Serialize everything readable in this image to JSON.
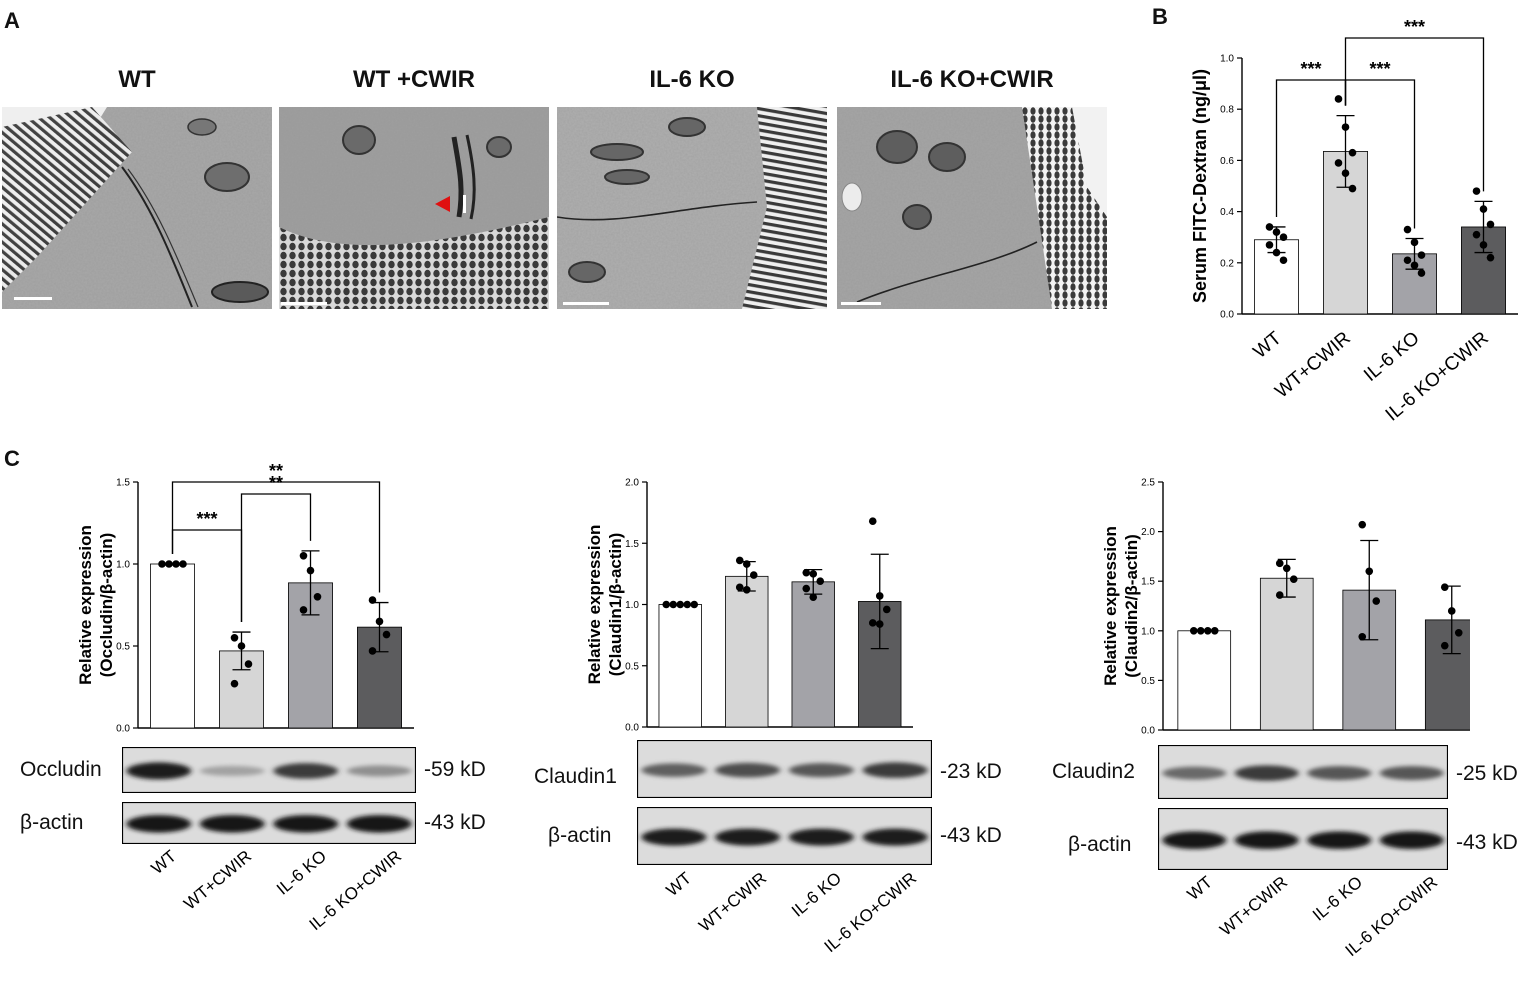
{
  "panel_a": {
    "letter": "A",
    "titles": [
      "WT",
      "WT +CWIR",
      "IL-6 KO",
      "IL-6 KO+CWIR"
    ]
  },
  "panel_b": {
    "letter": "B"
  },
  "panel_c": {
    "letter": "C"
  },
  "colors": {
    "WT": "#ffffff",
    "WT+CWIR": "#d6d6d6",
    "IL-6 KO": "#a3a3a8",
    "IL-6 KO+CWIR": "#5c5c5e",
    "arrowhead": "#e01010"
  },
  "chart_data": [
    {
      "id": "B",
      "type": "bar",
      "ylabel": "Serum FITC-Dextran (ng/μl)",
      "categories": [
        "WT",
        "WT+CWIR",
        "IL-6 KO",
        "IL-6 KO+CWIR"
      ],
      "values": [
        0.29,
        0.635,
        0.235,
        0.34
      ],
      "errors": [
        0.05,
        0.14,
        0.06,
        0.1
      ],
      "points": [
        [
          0.34,
          0.32,
          0.3,
          0.27,
          0.24,
          0.21
        ],
        [
          0.84,
          0.73,
          0.63,
          0.59,
          0.55,
          0.49
        ],
        [
          0.33,
          0.28,
          0.23,
          0.21,
          0.19,
          0.16
        ],
        [
          0.48,
          0.41,
          0.35,
          0.31,
          0.27,
          0.22
        ]
      ],
      "ylim": [
        0,
        1.0
      ],
      "yticks": [
        "0.0",
        "0.2",
        "0.4",
        "0.6",
        "0.8",
        "1.0"
      ],
      "significance": [
        {
          "from": 0,
          "to": 1,
          "label": "***"
        },
        {
          "from": 1,
          "to": 2,
          "label": "***"
        },
        {
          "from": 1,
          "to": 3,
          "label": "***"
        }
      ]
    },
    {
      "id": "C1",
      "type": "bar",
      "ylabel": [
        "Relative expression",
        "(Occludin/β-actin)"
      ],
      "categories": [
        "WT",
        "WT+CWIR",
        "IL-6 KO",
        "IL-6 KO+CWIR"
      ],
      "values": [
        1.0,
        0.47,
        0.885,
        0.615
      ],
      "errors": [
        0.0,
        0.115,
        0.195,
        0.15
      ],
      "points": [
        [
          1.0,
          1.0,
          1.0,
          1.0
        ],
        [
          0.55,
          0.5,
          0.39,
          0.27
        ],
        [
          1.05,
          0.96,
          0.8,
          0.72
        ],
        [
          0.78,
          0.65,
          0.57,
          0.47
        ]
      ],
      "ylim": [
        0,
        1.5
      ],
      "yticks": [
        "0.0",
        "0.5",
        "1.0",
        "1.5"
      ],
      "significance": [
        {
          "from": 0,
          "to": 1,
          "label": "***"
        },
        {
          "from": 1,
          "to": 2,
          "label": "**"
        },
        {
          "from": 0,
          "to": 3,
          "label": "**"
        }
      ],
      "blot_labels": [
        "Occludin",
        "β-actin"
      ],
      "blot_kd": [
        "-59 kD",
        "-43 kD"
      ]
    },
    {
      "id": "C2",
      "type": "bar",
      "ylabel": [
        "Relative expression",
        "(Claudin1/β-actin)"
      ],
      "categories": [
        "WT",
        "WT+CWIR",
        "IL-6 KO",
        "IL-6 KO+CWIR"
      ],
      "values": [
        1.0,
        1.23,
        1.185,
        1.025
      ],
      "errors": [
        0.0,
        0.12,
        0.1,
        0.385
      ],
      "points": [
        [
          1.0,
          1.0,
          1.0,
          1.0,
          1.0
        ],
        [
          1.36,
          1.33,
          1.24,
          1.14,
          1.12
        ],
        [
          1.26,
          1.25,
          1.19,
          1.13,
          1.06
        ],
        [
          1.68,
          1.07,
          0.96,
          0.85,
          0.84
        ]
      ],
      "ylim": [
        0,
        2.0
      ],
      "yticks": [
        "0.0",
        "0.5",
        "1.0",
        "1.5",
        "2.0"
      ],
      "significance": [],
      "blot_labels": [
        "Claudin1",
        "β-actin"
      ],
      "blot_kd": [
        "-23 kD",
        "-43 kD"
      ]
    },
    {
      "id": "C3",
      "type": "bar",
      "ylabel": [
        "Relative expression",
        "(Claudin2/β-actin)"
      ],
      "categories": [
        "WT",
        "WT+CWIR",
        "IL-6 KO",
        "IL-6 KO+CWIR"
      ],
      "values": [
        1.0,
        1.53,
        1.41,
        1.11
      ],
      "errors": [
        0.0,
        0.19,
        0.5,
        0.34
      ],
      "points": [
        [
          1.0,
          1.0,
          1.0,
          1.0
        ],
        [
          1.68,
          1.63,
          1.52,
          1.36
        ],
        [
          2.07,
          1.6,
          1.3,
          0.94
        ],
        [
          1.44,
          1.2,
          0.98,
          0.85
        ]
      ],
      "ylim": [
        0,
        2.5
      ],
      "yticks": [
        "0.0",
        "0.5",
        "1.0",
        "1.5",
        "2.0",
        "2.5"
      ],
      "significance": [],
      "blot_labels": [
        "Claudin2",
        "β-actin"
      ],
      "blot_kd": [
        "-25 kD",
        "-43 kD"
      ]
    }
  ]
}
